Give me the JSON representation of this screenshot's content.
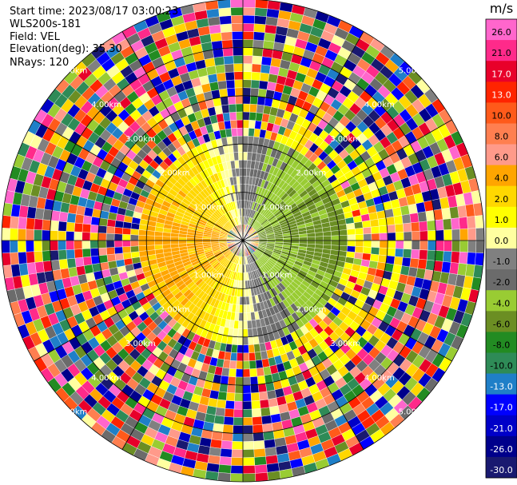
{
  "info": {
    "start_time": "Start time: 2023/08/17 03:00:23",
    "instrument": "WLS200s-181",
    "field": "Field: VEL",
    "elevation": "Elevation(deg): 35.30",
    "nrays": "NRays: 120"
  },
  "chart_data": {
    "type": "heatmap",
    "projection": "polar-ppi",
    "field": "VEL",
    "units": "m/s",
    "n_rays": 120,
    "elevation_deg": 35.3,
    "range_rings_km": [
      1,
      2,
      3,
      4,
      5
    ],
    "range_ring_labels": [
      "1.00km",
      "2.00km",
      "3.00km",
      "4.00km",
      "5.00km"
    ],
    "colorbar": {
      "title": "m/s",
      "ticks": [
        "26.0",
        "21.0",
        "17.0",
        "13.0",
        "10.0",
        "8.0",
        "6.0",
        "4.0",
        "2.0",
        "1.0",
        "0.0",
        "-1.0",
        "-2.0",
        "-4.0",
        "-6.0",
        "-8.0",
        "-10.0",
        "-13.0",
        "-17.0",
        "-21.0",
        "-26.0",
        "-30.0"
      ],
      "colors": [
        "#ff66cc",
        "#ff2a8a",
        "#e8002a",
        "#ff2400",
        "#ff5a1a",
        "#ff7f50",
        "#ff9a8a",
        "#ffa500",
        "#ffd700",
        "#ffff00",
        "#ffffa0",
        "#808080",
        "#6b6b6b",
        "#99cc33",
        "#6b8e23",
        "#228b22",
        "#2e8b57",
        "#1f7fc8",
        "#0000ff",
        "#0000c8",
        "#00008b",
        "#191970"
      ]
    }
  }
}
